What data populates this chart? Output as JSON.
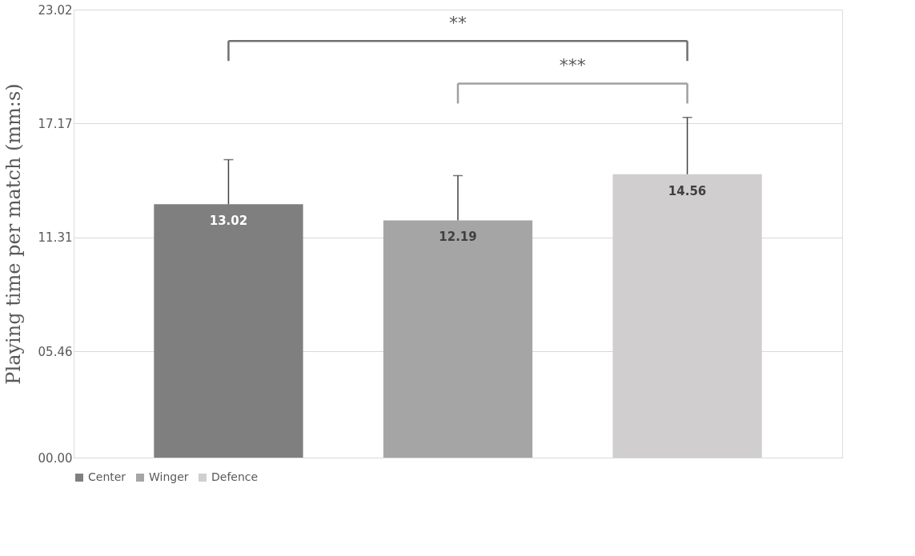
{
  "chart_data": {
    "type": "bar",
    "ylabel": "Playing time per match (mm:s)",
    "categories": [
      null,
      null,
      null
    ],
    "series": [
      {
        "name": "Center",
        "color": "#7f7f7f",
        "values": [
          13.02,
          null,
          null
        ],
        "errors": [
          [
            13.02,
            15.31
          ],
          null,
          null
        ]
      },
      {
        "name": "Winger",
        "color": "#a5a5a5",
        "values": [
          null,
          12.19,
          null
        ],
        "errors": [
          null,
          [
            12.19,
            14.49
          ],
          null
        ]
      },
      {
        "name": "Defence",
        "color": "#d0cece",
        "values": [
          null,
          null,
          14.56
        ],
        "errors": [
          null,
          null,
          [
            14.56,
            17.48
          ]
        ]
      }
    ],
    "data_labels": true,
    "ylim": [
      0,
      23.02
    ],
    "yticks": [
      {
        "value": 0,
        "label": "00.00"
      },
      {
        "value": 5.46,
        "label": "05.46"
      },
      11.31,
      17.17,
      23.02
    ],
    "grid": "y",
    "legend": "bottom",
    "annotations": [
      "**",
      "***"
    ]
  }
}
